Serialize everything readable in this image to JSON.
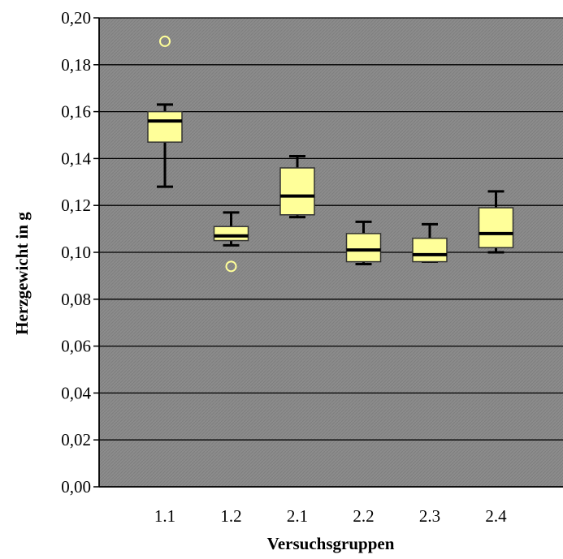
{
  "chart_data": {
    "type": "boxplot",
    "xlabel": "Versuchsgruppen",
    "ylabel": "Herzgewicht in g",
    "ylim": [
      0,
      0.2
    ],
    "y_ticks": [
      "0,00",
      "0,02",
      "0,04",
      "0,06",
      "0,08",
      "0,10",
      "0,12",
      "0,14",
      "0,16",
      "0,18",
      "0,20"
    ],
    "categories": [
      "1.1",
      "1.2",
      "2.1",
      "2.2",
      "2.3",
      "2.4"
    ],
    "boxes": [
      {
        "label": "1.1",
        "whisker_low": 0.128,
        "q1": 0.147,
        "median": 0.156,
        "q3": 0.16,
        "whisker_high": 0.163,
        "outliers": [
          0.19
        ]
      },
      {
        "label": "1.2",
        "whisker_low": 0.103,
        "q1": 0.105,
        "median": 0.107,
        "q3": 0.111,
        "whisker_high": 0.117,
        "outliers": [
          0.094
        ]
      },
      {
        "label": "2.1",
        "whisker_low": 0.115,
        "q1": 0.116,
        "median": 0.124,
        "q3": 0.136,
        "whisker_high": 0.141,
        "outliers": []
      },
      {
        "label": "2.2",
        "whisker_low": 0.095,
        "q1": 0.096,
        "median": 0.101,
        "q3": 0.108,
        "whisker_high": 0.113,
        "outliers": []
      },
      {
        "label": "2.3",
        "whisker_low": 0.096,
        "q1": 0.096,
        "median": 0.099,
        "q3": 0.106,
        "whisker_high": 0.112,
        "outliers": []
      },
      {
        "label": "2.4",
        "whisker_low": 0.1,
        "q1": 0.102,
        "median": 0.108,
        "q3": 0.119,
        "whisker_high": 0.126,
        "outliers": []
      }
    ],
    "grid": true,
    "legend": false,
    "colors": {
      "plot_background": "#8c8c8c",
      "box_fill": "#ffff99",
      "box_stroke": "#333333",
      "median": "#000000",
      "whisker": "#000000",
      "gridline": "#000000",
      "outlier": "#ffff99"
    }
  }
}
